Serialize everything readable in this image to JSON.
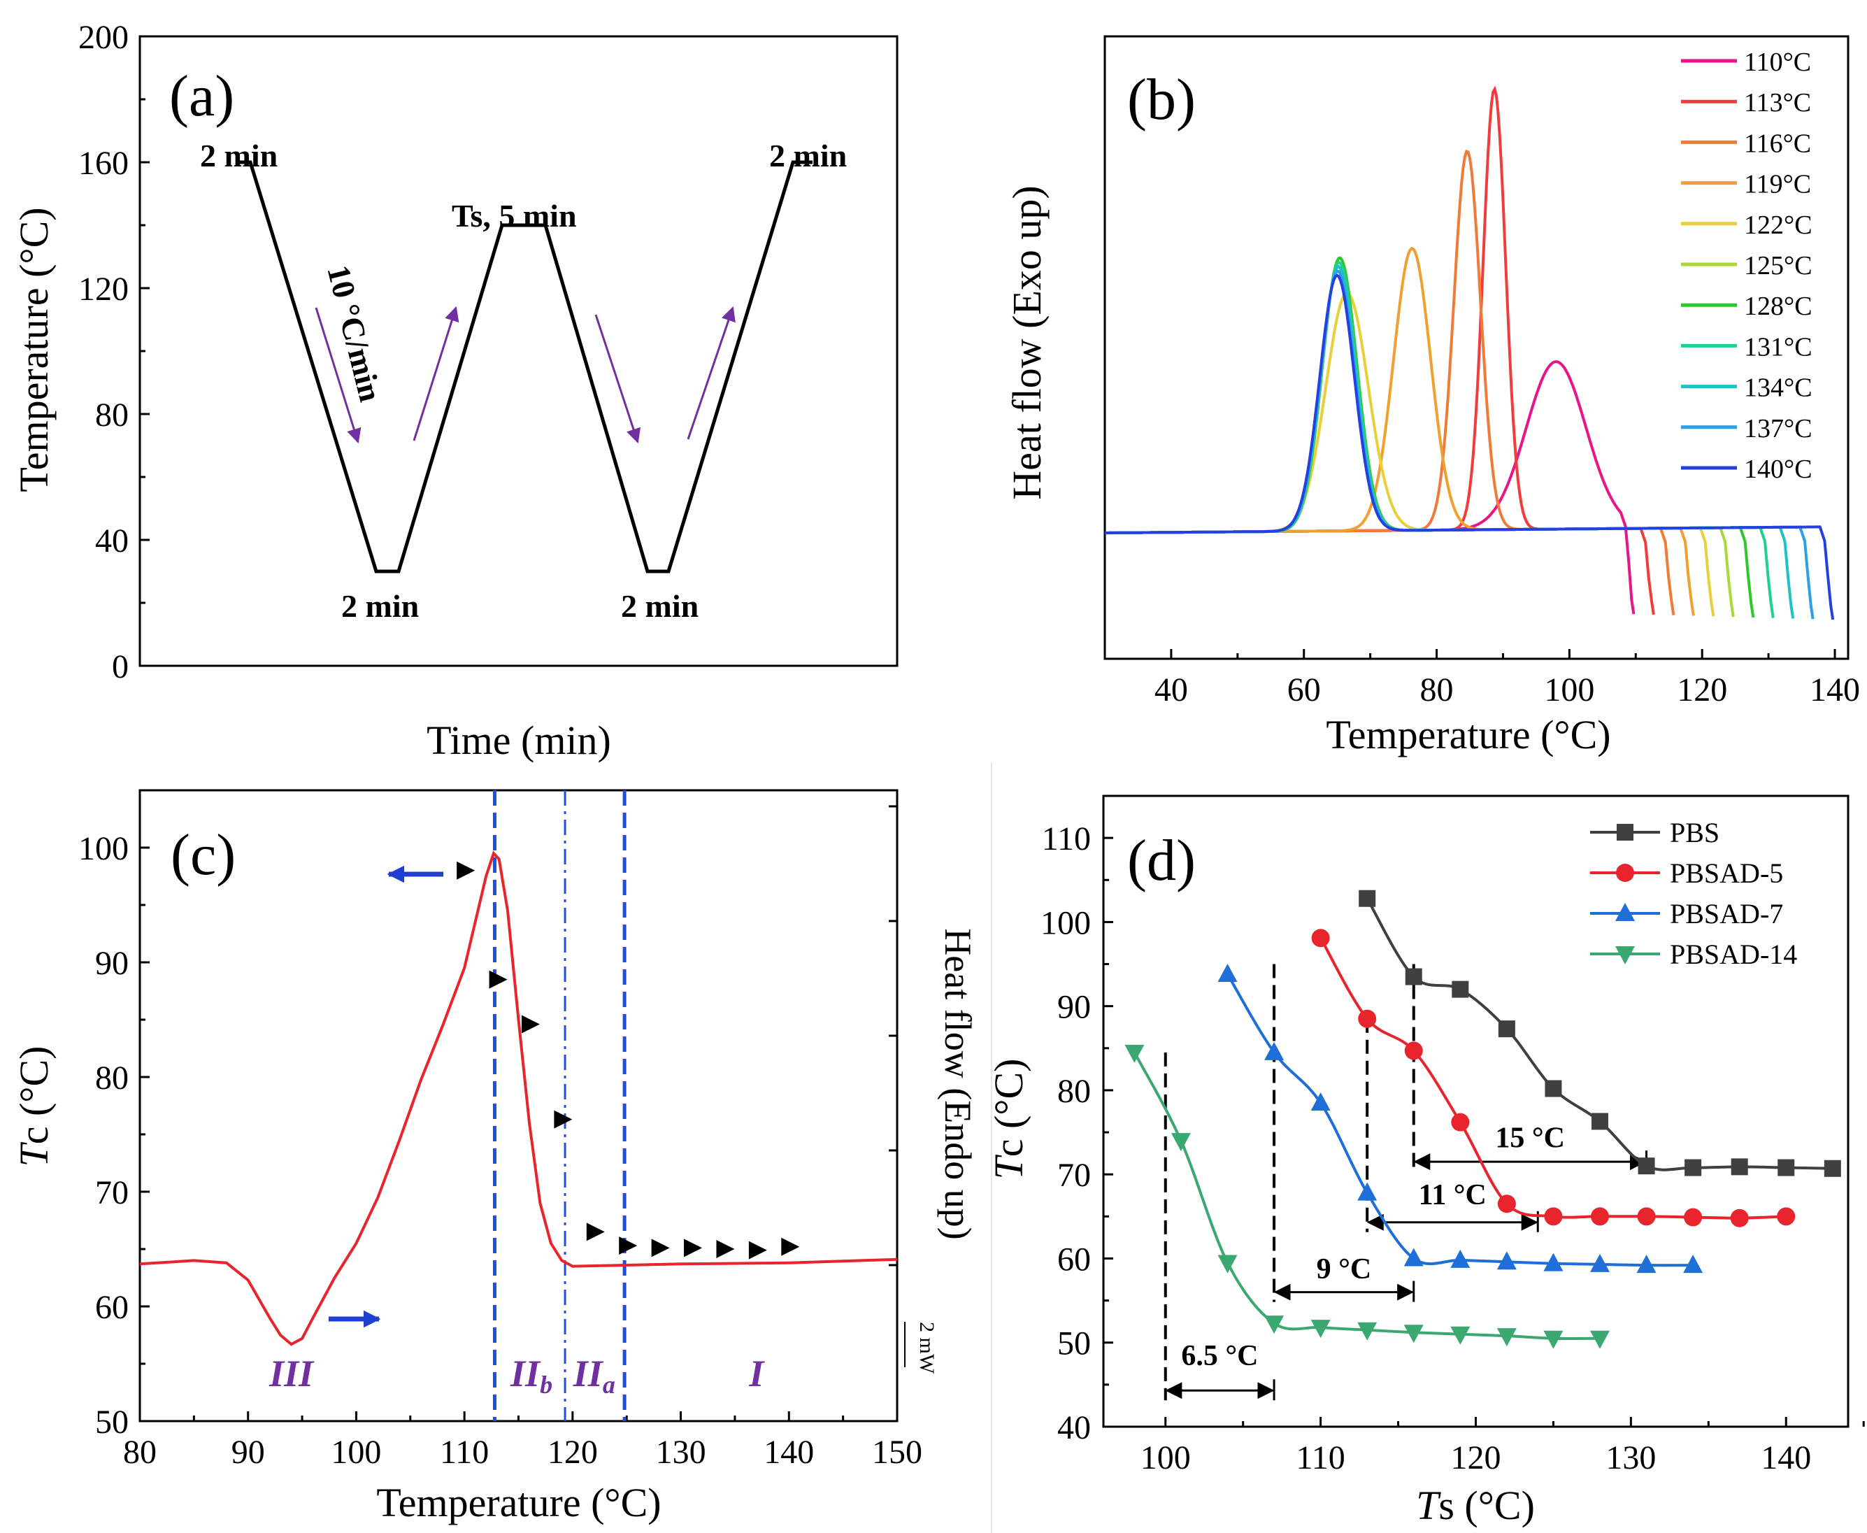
{
  "panels": {
    "a": {
      "label": "(a)",
      "xlabel": "Time (min)",
      "ylabel": "Temperature (°C)",
      "ylim": [
        0,
        200
      ],
      "yticks": [
        "0",
        "40",
        "80",
        "120",
        "160",
        "200"
      ],
      "annotations": [
        "2 min",
        "2 min",
        "Ts, 5 min",
        "2 min",
        "2 min",
        "10 °C/min"
      ],
      "program_profile": [
        160,
        160,
        30,
        30,
        140,
        140,
        30,
        30,
        160,
        160
      ],
      "arrow_color": "#7030a0"
    },
    "b": {
      "label": "(b)",
      "xlabel": "Temperature (°C)",
      "ylabel": "Heat flow (Exo up)",
      "xlim": [
        30,
        142
      ],
      "xticks": [
        "40",
        "60",
        "80",
        "100",
        "120",
        "140"
      ],
      "legend_placement": "top-right",
      "series": [
        {
          "name": "110°C",
          "ts": 110,
          "color": "#e6158a",
          "peak_x": 98,
          "peak_h": 0.38,
          "sigma": 4.5
        },
        {
          "name": "113°C",
          "ts": 113,
          "color": "#f03c3c",
          "peak_x": 88.7,
          "peak_h": 1.0,
          "sigma": 1.7
        },
        {
          "name": "116°C",
          "ts": 116,
          "color": "#f07a3a",
          "peak_x": 84.6,
          "peak_h": 0.86,
          "sigma": 2.0
        },
        {
          "name": "119°C",
          "ts": 119,
          "color": "#f0a030",
          "peak_x": 76.3,
          "peak_h": 0.64,
          "sigma": 2.8
        },
        {
          "name": "122°C",
          "ts": 122,
          "color": "#e8d03a",
          "peak_x": 66.5,
          "peak_h": 0.54,
          "sigma": 3.2
        },
        {
          "name": "125°C",
          "ts": 125,
          "color": "#a8d83a",
          "peak_x": 65.4,
          "peak_h": 0.62,
          "sigma": 2.6
        },
        {
          "name": "128°C",
          "ts": 128,
          "color": "#2ec82e",
          "peak_x": 65.4,
          "peak_h": 0.62,
          "sigma": 2.6
        },
        {
          "name": "131°C",
          "ts": 131,
          "color": "#20d090",
          "peak_x": 65.3,
          "peak_h": 0.61,
          "sigma": 2.6
        },
        {
          "name": "134°C",
          "ts": 134,
          "color": "#20c0c8",
          "peak_x": 65.2,
          "peak_h": 0.6,
          "sigma": 2.6
        },
        {
          "name": "137°C",
          "ts": 137,
          "color": "#2aa0e8",
          "peak_x": 65.1,
          "peak_h": 0.59,
          "sigma": 2.6
        },
        {
          "name": "140°C",
          "ts": 140,
          "color": "#2540e0",
          "peak_x": 65.0,
          "peak_h": 0.58,
          "sigma": 2.6
        }
      ]
    },
    "c": {
      "label": "(c)",
      "xlabel": "Temperature (°C)",
      "ylabel_italic": "T",
      "ylabel_rest": "c (°C)",
      "ylabel_right": "Heat flow (Endo up)",
      "scale_bar": "2 mW",
      "xlim": [
        80,
        150
      ],
      "ylim": [
        50,
        105
      ],
      "xticks": [
        "80",
        "90",
        "100",
        "110",
        "120",
        "130",
        "140",
        "150"
      ],
      "yticks": [
        "50",
        "60",
        "70",
        "80",
        "90",
        "100"
      ],
      "vlines": [
        {
          "x": 112.8,
          "style": "dashed"
        },
        {
          "x": 119.3,
          "style": "dashdot"
        },
        {
          "x": 124.8,
          "style": "dashed"
        }
      ],
      "regions": [
        {
          "label": "III",
          "sub": "",
          "x": 94
        },
        {
          "label": "II",
          "sub": "b",
          "x": 116.2
        },
        {
          "label": "II",
          "sub": "a",
          "x": 122
        },
        {
          "label": "I",
          "sub": "",
          "x": 137
        }
      ],
      "region_color": "#7030a0",
      "line_color": "#e8242c",
      "vline_color": "#1f4fe0",
      "arrow_color": "#1f3fd0",
      "markers": [
        {
          "x": 110,
          "y": 98
        },
        {
          "x": 113,
          "y": 88.5
        },
        {
          "x": 116,
          "y": 84.6
        },
        {
          "x": 119,
          "y": 76.3
        },
        {
          "x": 122,
          "y": 66.5
        },
        {
          "x": 125,
          "y": 65.3
        },
        {
          "x": 128,
          "y": 65.1
        },
        {
          "x": 131,
          "y": 65.1
        },
        {
          "x": 134,
          "y": 65.0
        },
        {
          "x": 137,
          "y": 64.9
        },
        {
          "x": 140,
          "y": 65.2
        }
      ],
      "heat_flow_curve_y": [
        [
          80,
          63.7
        ],
        [
          85,
          64.0
        ],
        [
          88,
          63.8
        ],
        [
          90,
          62.3
        ],
        [
          92,
          59.0
        ],
        [
          93,
          57.5
        ],
        [
          94,
          56.7
        ],
        [
          95,
          57.2
        ],
        [
          96,
          59.0
        ],
        [
          98,
          62.5
        ],
        [
          100,
          65.5
        ],
        [
          102,
          69.5
        ],
        [
          104,
          74.5
        ],
        [
          106,
          79.8
        ],
        [
          108,
          84.5
        ],
        [
          110,
          89.5
        ],
        [
          111,
          93.5
        ],
        [
          112,
          97.5
        ],
        [
          112.7,
          99.5
        ],
        [
          113.2,
          99.0
        ],
        [
          114,
          94.5
        ],
        [
          115,
          85.0
        ],
        [
          116,
          76.0
        ],
        [
          117,
          69.0
        ],
        [
          118,
          65.5
        ],
        [
          119,
          64.0
        ],
        [
          120,
          63.5
        ],
        [
          125,
          63.6
        ],
        [
          130,
          63.7
        ],
        [
          140,
          63.8
        ],
        [
          150,
          64.1
        ]
      ]
    },
    "d": {
      "label": "(d)",
      "xlabel_italic": "T",
      "xlabel_rest": "s (°C)",
      "ylabel_italic": "T",
      "ylabel_rest": "c (°C)",
      "xlim": [
        96,
        144
      ],
      "ylim": [
        40,
        115
      ],
      "xticks": [
        "100",
        "110",
        "120",
        "130",
        "140"
      ],
      "yticks": [
        "40",
        "50",
        "60",
        "70",
        "80",
        "90",
        "100",
        "110"
      ],
      "legend_placement": "top-right",
      "series": [
        {
          "name": "PBS",
          "color": "#404040",
          "marker": "square",
          "x": [
            113,
            116,
            119,
            122,
            125,
            128,
            131,
            134,
            137,
            140,
            143
          ],
          "y": [
            102.8,
            93.5,
            92.0,
            87.3,
            80.2,
            76.3,
            71.0,
            70.8,
            70.9,
            70.8,
            70.7
          ]
        },
        {
          "name": "PBSAD-5",
          "color": "#e8242c",
          "marker": "circle",
          "x": [
            110,
            113,
            116,
            119,
            122,
            125,
            128,
            131,
            134,
            137,
            140
          ],
          "y": [
            98.1,
            88.5,
            84.7,
            76.2,
            66.5,
            65.0,
            65.0,
            65.0,
            64.9,
            64.8,
            65.0
          ]
        },
        {
          "name": "PBSAD-7",
          "color": "#1f6fd8",
          "marker": "triangle-up",
          "x": [
            104,
            107,
            110,
            113,
            116,
            119,
            122,
            125,
            128,
            131,
            134
          ],
          "y": [
            93.8,
            84.5,
            78.5,
            67.8,
            60.0,
            59.8,
            59.6,
            59.4,
            59.3,
            59.2,
            59.2
          ]
        },
        {
          "name": "PBSAD-14",
          "color": "#3aa870",
          "marker": "triangle-down",
          "x": [
            98,
            101,
            104,
            107,
            110,
            113,
            116,
            119,
            122,
            125,
            128
          ],
          "y": [
            84.5,
            74.0,
            59.5,
            52.3,
            51.8,
            51.5,
            51.2,
            51.0,
            50.8,
            50.5,
            50.5
          ]
        }
      ],
      "brackets": [
        {
          "label": "15 °C",
          "x1": 116,
          "x2": 131,
          "y_text": 74.4,
          "y_arrow": 71.5,
          "vline_bottom": 71.5,
          "vline_top": 95
        },
        {
          "label": "11 °C",
          "x1": 113,
          "x2": 124,
          "y_text": 67.6,
          "y_arrow": 64.3,
          "vline_bottom": 64.3,
          "vline_top": 88.5
        },
        {
          "label": "9 °C",
          "x1": 107,
          "x2": 116,
          "y_text": 58.8,
          "y_arrow": 56,
          "vline_bottom": 56,
          "vline_top": 95
        },
        {
          "label": "6.5 °C",
          "x1": 100,
          "x2": 107,
          "y_text": 48.5,
          "y_arrow": 44.3,
          "vline_bottom": 44.3,
          "vline_top": 84.5
        }
      ]
    }
  }
}
